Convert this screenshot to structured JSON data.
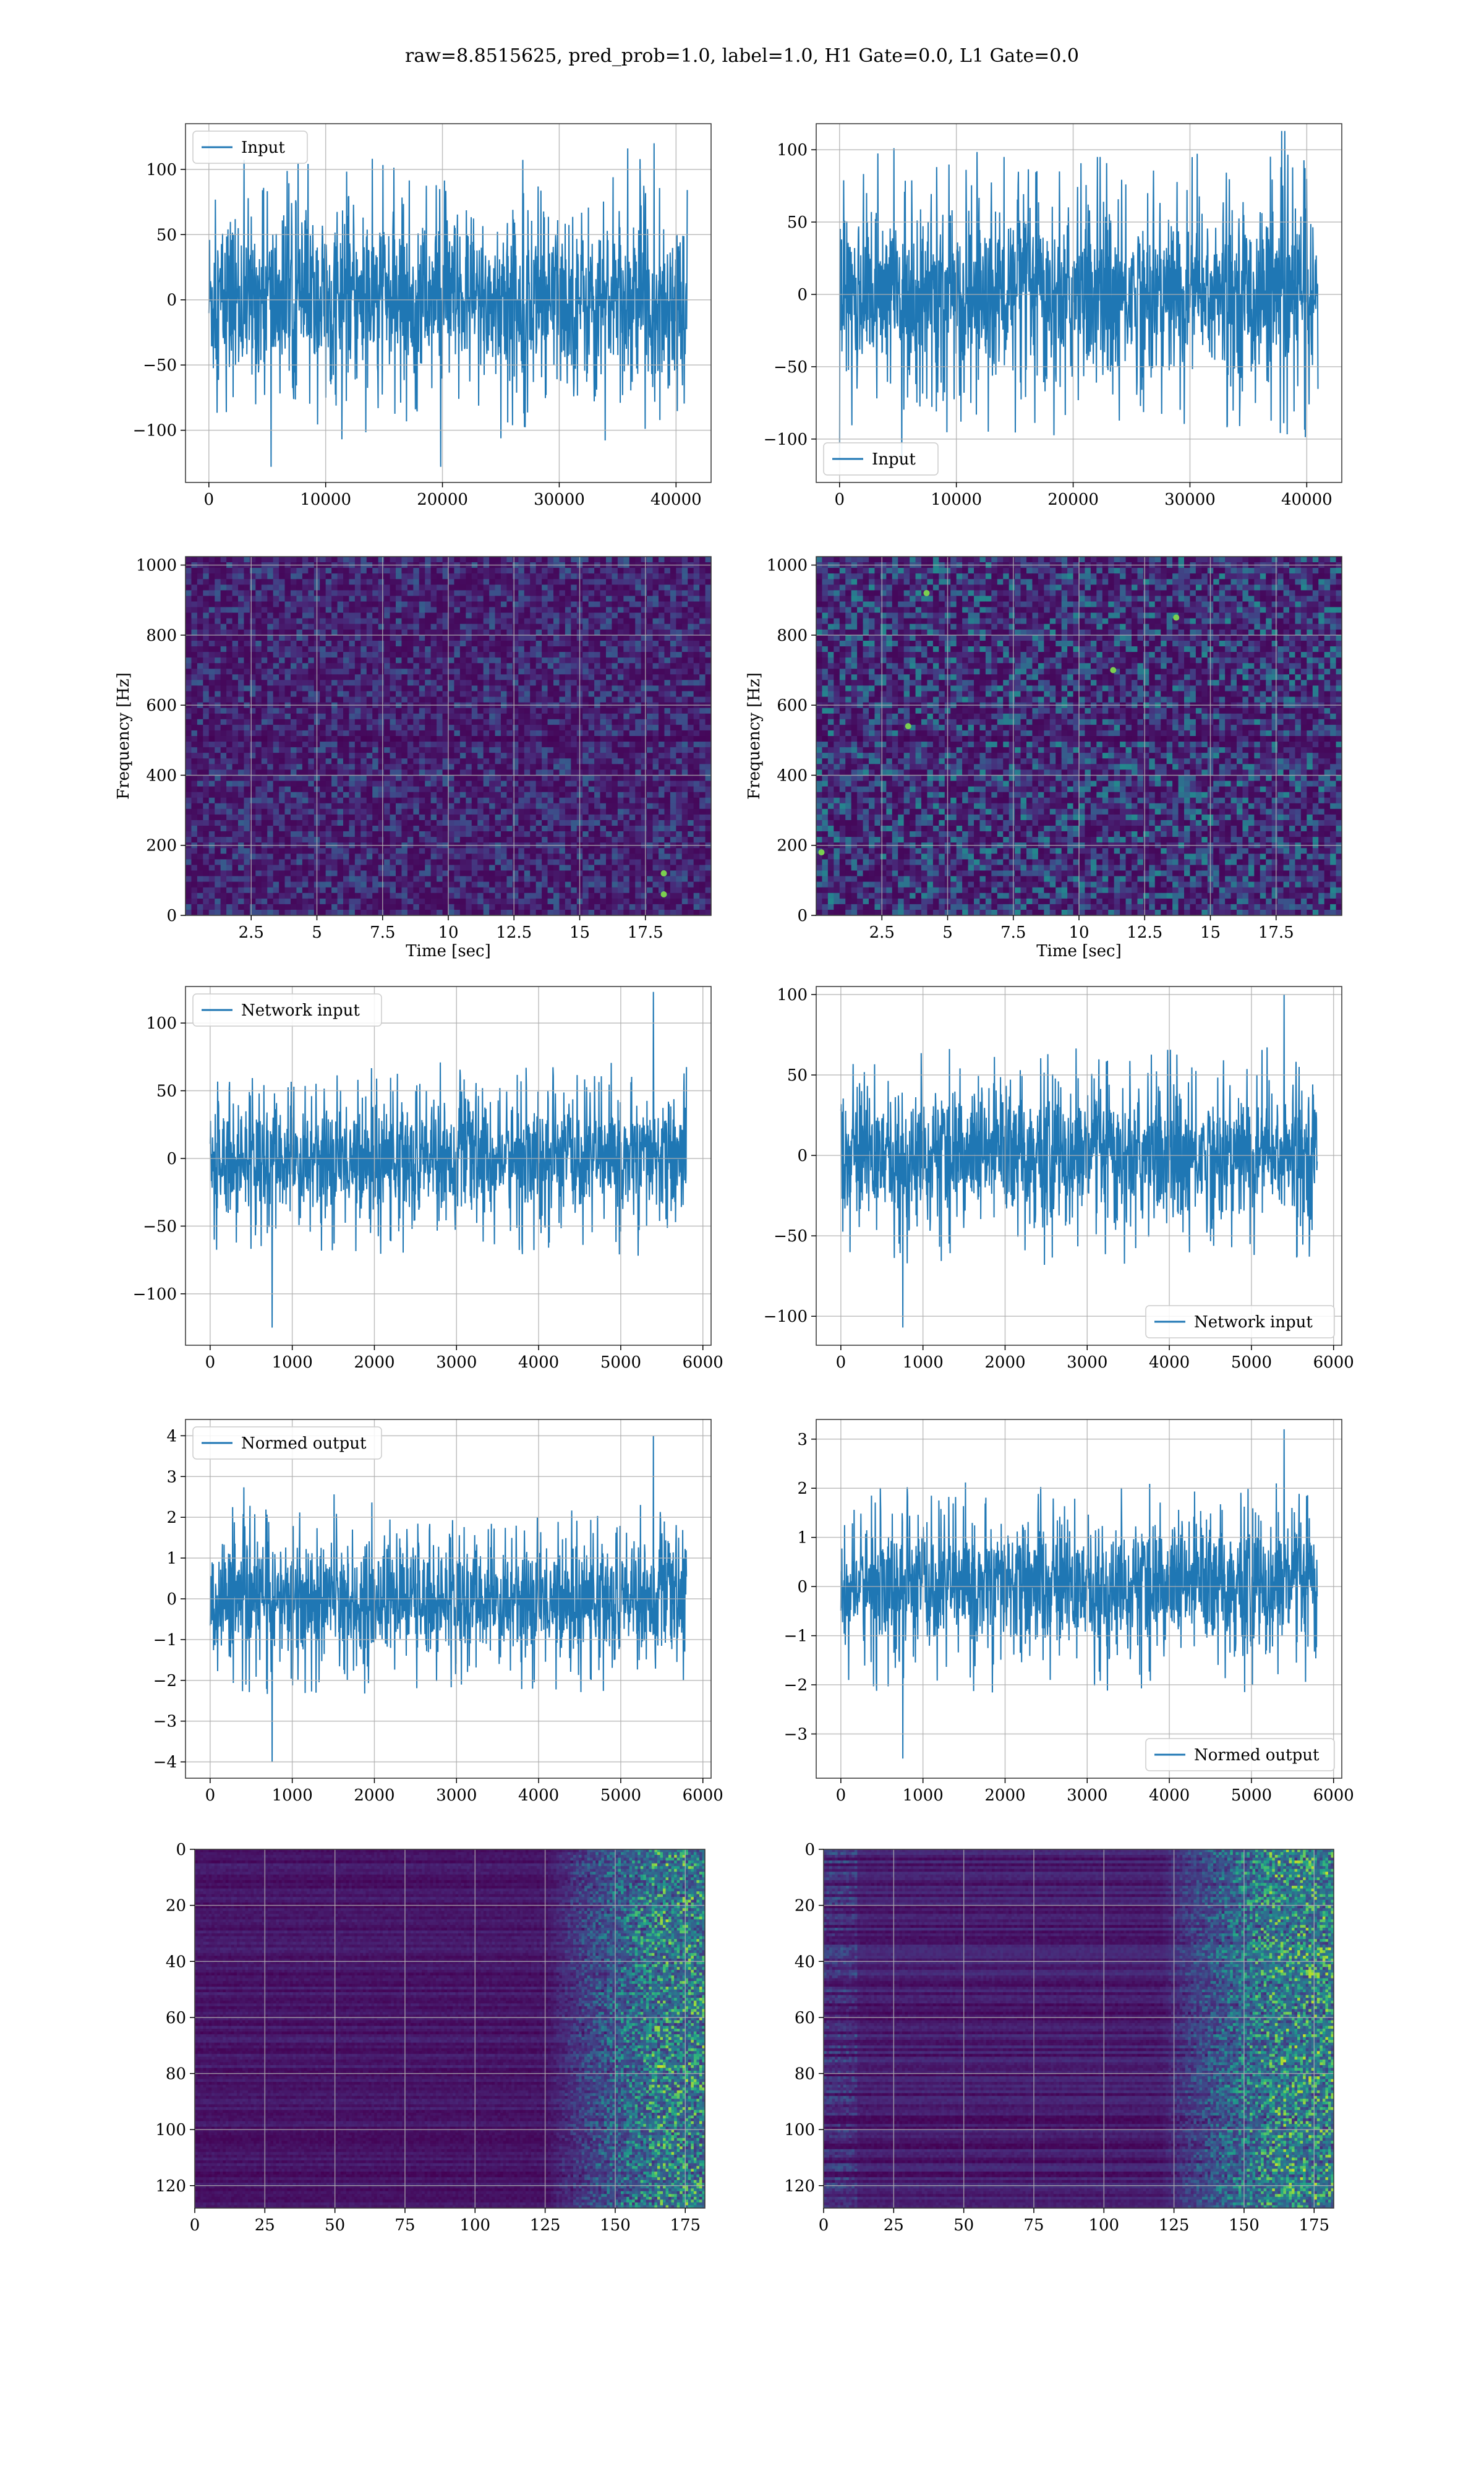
{
  "figure": {
    "suptitle": "raw=8.8515625, pred_prob=1.0, label=1.0, H1 Gate=0.0, L1 Gate=0.0",
    "series_color": "#1f77b4",
    "grid_color": "#b0b0b0"
  },
  "chart_data": [
    {
      "id": "input-h1",
      "type": "line",
      "row": 0,
      "col": 0,
      "legend": "Input",
      "legend_loc": "upper-left",
      "xlim": [
        -2000,
        43000
      ],
      "ylim": [
        -140,
        135
      ],
      "xticks": [
        0,
        10000,
        20000,
        30000,
        40000
      ],
      "yticks": [
        -100,
        -50,
        0,
        50,
        100
      ],
      "x_range": [
        0,
        40960
      ],
      "core_amplitude": 60,
      "peak_max": 120,
      "peak_min": -128,
      "xlabel": "",
      "ylabel": ""
    },
    {
      "id": "input-l1",
      "type": "line",
      "row": 0,
      "col": 1,
      "legend": "Input",
      "legend_loc": "lower-left",
      "xlim": [
        -2000,
        43000
      ],
      "ylim": [
        -130,
        118
      ],
      "xticks": [
        0,
        10000,
        20000,
        30000,
        40000
      ],
      "yticks": [
        -100,
        -50,
        0,
        50,
        100
      ],
      "x_range": [
        0,
        40960
      ],
      "core_amplitude": 55,
      "peak_max": 113,
      "peak_min": -118,
      "xlabel": "",
      "ylabel": ""
    },
    {
      "id": "spectrogram-h1",
      "type": "heatmap",
      "row": 1,
      "col": 0,
      "xlim": [
        0,
        20
      ],
      "ylim": [
        0,
        1024
      ],
      "xticks": [
        2.5,
        5.0,
        7.5,
        10.0,
        12.5,
        15.0,
        17.5
      ],
      "yticks": [
        0,
        200,
        400,
        600,
        800,
        1000
      ],
      "xlabel": "Time [sec]",
      "ylabel": "Frequency [Hz]",
      "colormap": "viridis",
      "intensity": 0.28,
      "hotspots": [
        {
          "t": 18.2,
          "f": 60
        },
        {
          "t": 18.2,
          "f": 120
        }
      ]
    },
    {
      "id": "spectrogram-l1",
      "type": "heatmap",
      "row": 1,
      "col": 1,
      "xlim": [
        0,
        20
      ],
      "ylim": [
        0,
        1024
      ],
      "xticks": [
        2.5,
        5.0,
        7.5,
        10.0,
        12.5,
        15.0,
        17.5
      ],
      "yticks": [
        0,
        200,
        400,
        600,
        800,
        1000
      ],
      "xlabel": "Time [sec]",
      "ylabel": "Frequency [Hz]",
      "colormap": "viridis",
      "intensity": 0.45,
      "hotspots": [
        {
          "t": 3.5,
          "f": 540
        },
        {
          "t": 4.2,
          "f": 920
        },
        {
          "t": 11.3,
          "f": 700
        },
        {
          "t": 13.7,
          "f": 850
        },
        {
          "t": 0.2,
          "f": 180
        }
      ]
    },
    {
      "id": "network-input-h1",
      "type": "line",
      "row": 2,
      "col": 0,
      "legend": "Network input",
      "legend_loc": "upper-left",
      "xlim": [
        -300,
        6100
      ],
      "ylim": [
        -138,
        127
      ],
      "xticks": [
        0,
        1000,
        2000,
        3000,
        4000,
        5000,
        6000
      ],
      "yticks": [
        -100,
        -50,
        0,
        50,
        100
      ],
      "x_range": [
        0,
        5800
      ],
      "core_amplitude": 40,
      "peak_max": 123,
      "peak_min": -125,
      "xlabel": "",
      "ylabel": ""
    },
    {
      "id": "network-input-l1",
      "type": "line",
      "row": 2,
      "col": 1,
      "legend": "Network input",
      "legend_loc": "lower-right",
      "xlim": [
        -300,
        6100
      ],
      "ylim": [
        -118,
        105
      ],
      "xticks": [
        0,
        1000,
        2000,
        3000,
        4000,
        5000,
        6000
      ],
      "yticks": [
        -100,
        -50,
        0,
        50,
        100
      ],
      "x_range": [
        0,
        5800
      ],
      "core_amplitude": 38,
      "peak_max": 100,
      "peak_min": -107,
      "xlabel": "",
      "ylabel": ""
    },
    {
      "id": "normed-output-h1",
      "type": "line",
      "row": 3,
      "col": 0,
      "legend": "Normed output",
      "legend_loc": "upper-left",
      "xlim": [
        -300,
        6100
      ],
      "ylim": [
        -4.4,
        4.4
      ],
      "xticks": [
        0,
        1000,
        2000,
        3000,
        4000,
        5000,
        6000
      ],
      "yticks": [
        -4,
        -3,
        -2,
        -1,
        0,
        1,
        2,
        3,
        4
      ],
      "x_range": [
        0,
        5800
      ],
      "core_amplitude": 1.3,
      "peak_max": 4.0,
      "peak_min": -4.0,
      "xlabel": "",
      "ylabel": ""
    },
    {
      "id": "normed-output-l1",
      "type": "line",
      "row": 3,
      "col": 1,
      "legend": "Normed output",
      "legend_loc": "lower-right",
      "xlim": [
        -300,
        6100
      ],
      "ylim": [
        -3.9,
        3.4
      ],
      "xticks": [
        0,
        1000,
        2000,
        3000,
        4000,
        5000,
        6000
      ],
      "yticks": [
        -3,
        -2,
        -1,
        0,
        1,
        2,
        3
      ],
      "x_range": [
        0,
        5800
      ],
      "core_amplitude": 1.2,
      "peak_max": 3.2,
      "peak_min": -3.5,
      "xlabel": "",
      "ylabel": ""
    },
    {
      "id": "feature-map-h1",
      "type": "heatmap",
      "row": 4,
      "col": 0,
      "xlim": [
        0,
        182
      ],
      "ylim": [
        128,
        0
      ],
      "xticks": [
        0,
        25,
        50,
        75,
        100,
        125,
        150,
        175
      ],
      "yticks": [
        0,
        20,
        40,
        60,
        80,
        100,
        120
      ],
      "xlabel": "",
      "ylabel": "",
      "colormap": "viridis",
      "intensity": 0.22,
      "bright_from": 125,
      "bright_peak": 165
    },
    {
      "id": "feature-map-l1",
      "type": "heatmap",
      "row": 4,
      "col": 1,
      "xlim": [
        0,
        182
      ],
      "ylim": [
        128,
        0
      ],
      "xticks": [
        0,
        25,
        50,
        75,
        100,
        125,
        150,
        175
      ],
      "yticks": [
        0,
        20,
        40,
        60,
        80,
        100,
        120
      ],
      "xlabel": "",
      "ylabel": "",
      "colormap": "viridis",
      "intensity": 0.32,
      "bright_from": 120,
      "bright_peak": 160
    }
  ]
}
